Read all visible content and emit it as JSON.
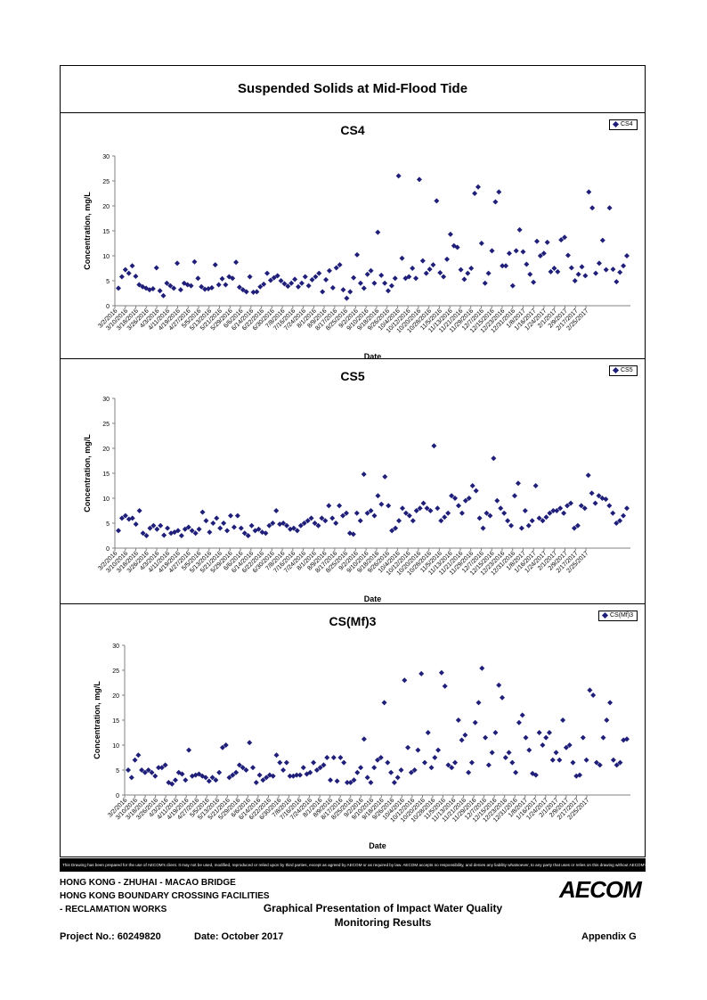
{
  "page": {
    "main_title": "Suspended Solids at Mid-Flood Tide",
    "disclaimer": "This Drawing has been prepared for the use of AECOM's client. It may not be used, modified, reproduced or relied upon by third parties, except as agreed by AECOM or as required by law. AECOM accepts no responsibility, and denies any liability whatsoever, to any party that uses or relies on this drawing without AECOM's express written consent.",
    "footer": {
      "line1": "HONG KONG - ZHUHAI - MACAO BRIDGE",
      "line2": "HONG KONG BOUNDARY CROSSING FACILITIES",
      "line3": "- RECLAMATION WORKS",
      "center1": "Graphical Presentation of Impact Water Quality",
      "center2": "Monitoring Results",
      "project": "Project No.: 60249820",
      "date": "Date: October 2017",
      "appendix": "Appendix G",
      "logo": "AECOM"
    }
  },
  "colors": {
    "marker": "#1f1f7a",
    "axis": "#808080",
    "text": "#000000"
  },
  "chart_data": [
    {
      "type": "scatter",
      "title": "CS4",
      "xlabel": "Date",
      "ylabel": "Concentration, mg/L",
      "ylim": [
        0,
        30
      ],
      "yticks": [
        "0",
        "5",
        "10",
        "15",
        "20",
        "25",
        "30"
      ],
      "xlim": [
        "3/2/2016",
        "3/31/2017"
      ],
      "xtick_labels": [
        "3/2/2016",
        "3/10/2016",
        "3/18/2016",
        "3/26/2016",
        "4/3/2016",
        "4/11/2016",
        "4/19/2016",
        "4/27/2016",
        "5/5/2016",
        "5/13/2016",
        "5/21/2016",
        "5/29/2016",
        "6/6/2016",
        "6/14/2016",
        "6/22/2016",
        "6/30/2016",
        "7/8/2016",
        "7/16/2016",
        "7/24/2016",
        "8/1/2016",
        "8/9/2016",
        "8/17/2016",
        "8/25/2016",
        "9/2/2016",
        "9/10/2016",
        "9/18/2016",
        "9/26/2016",
        "10/4/2016",
        "10/12/2016",
        "10/20/2016",
        "10/28/2016",
        "11/5/2016",
        "11/13/2016",
        "11/21/2016",
        "11/29/2016",
        "12/7/2016",
        "12/15/2016",
        "12/23/2016",
        "12/31/2016",
        "1/8/2017",
        "1/16/2017",
        "1/24/2017",
        "2/1/2017",
        "2/9/2017",
        "2/17/2017",
        "2/25/2017"
      ],
      "legend": "CS4",
      "legend_position": "top-right",
      "grid": false,
      "series": [
        {
          "name": "CS4",
          "values": [
            3.5,
            5.8,
            7.2,
            6.5,
            8.0,
            5.9,
            4.2,
            3.8,
            3.5,
            3.2,
            3.4,
            7.6,
            3.0,
            2.0,
            4.5,
            4.0,
            3.5,
            8.5,
            3.2,
            4.5,
            4.2,
            4.0,
            8.8,
            5.5,
            3.8,
            3.3,
            3.4,
            3.6,
            8.2,
            4.2,
            5.4,
            4.2,
            5.8,
            5.5,
            8.7,
            3.7,
            3.2,
            2.8,
            5.8,
            2.7,
            2.8,
            3.8,
            4.3,
            6.5,
            5.1,
            5.6,
            6.0,
            5.0,
            4.4,
            3.9,
            4.5,
            5.3,
            3.8,
            4.5,
            5.8,
            4.0,
            5.2,
            5.8,
            6.5,
            2.8,
            5.2,
            7.0,
            3.6,
            7.6,
            8.2,
            3.2,
            1.5,
            2.8,
            5.6,
            10.2,
            4.5,
            3.5,
            6.3,
            7.0,
            4.5,
            14.7,
            6.1,
            4.5,
            3.0,
            4.0,
            5.5,
            26.0,
            9.5,
            5.5,
            5.8,
            7.5,
            5.5,
            25.3,
            9.0,
            6.5,
            7.3,
            8.2,
            21.0,
            6.6,
            5.8,
            9.3,
            14.3,
            12.0,
            11.7,
            7.2,
            5.3,
            6.5,
            7.5,
            22.5,
            23.8,
            12.5,
            4.5,
            6.5,
            11.0,
            20.8,
            22.8,
            8.0,
            8.0,
            10.5,
            4.0,
            11.0,
            15.2,
            10.8,
            8.3,
            6.3,
            4.7,
            12.9,
            10.0,
            10.5,
            12.7,
            6.8,
            7.5,
            6.8,
            13.2,
            13.7,
            10.1,
            7.6,
            5.0,
            6.3,
            7.8,
            6.0,
            22.8,
            19.6,
            6.5,
            8.5,
            13.1,
            7.2,
            19.6,
            7.3,
            4.8,
            6.7,
            8.0,
            10.0
          ]
        }
      ]
    },
    {
      "type": "scatter",
      "title": "CS5",
      "xlabel": "Date",
      "ylabel": "Concentration, mg/L",
      "ylim": [
        0,
        30
      ],
      "yticks": [
        "0",
        "5",
        "10",
        "15",
        "20",
        "25",
        "30"
      ],
      "xlim": [
        "3/2/2016",
        "3/31/2017"
      ],
      "xtick_labels": [
        "3/2/2016",
        "3/10/2016",
        "3/18/2016",
        "3/26/2016",
        "4/3/2016",
        "4/11/2016",
        "4/19/2016",
        "4/27/2016",
        "5/5/2016",
        "5/13/2016",
        "5/21/2016",
        "5/29/2016",
        "6/6/2016",
        "6/14/2016",
        "6/22/2016",
        "6/30/2016",
        "7/8/2016",
        "7/16/2016",
        "7/24/2016",
        "8/1/2016",
        "8/9/2016",
        "8/17/2016",
        "8/25/2016",
        "9/2/2016",
        "9/10/2016",
        "9/18/2016",
        "9/26/2016",
        "10/4/2016",
        "10/12/2016",
        "10/20/2016",
        "10/28/2016",
        "11/5/2016",
        "11/13/2016",
        "11/21/2016",
        "11/29/2016",
        "12/7/2016",
        "12/15/2016",
        "12/23/2016",
        "12/31/2016",
        "1/8/2017",
        "1/16/2017",
        "1/24/2017",
        "2/1/2017",
        "2/9/2017",
        "2/17/2017",
        "2/25/2017"
      ],
      "legend": "CS5",
      "legend_position": "top-right",
      "grid": false,
      "series": [
        {
          "name": "CS5",
          "values": [
            3.5,
            6.0,
            6.5,
            5.8,
            6.0,
            4.8,
            7.5,
            3.0,
            2.5,
            4.0,
            4.5,
            3.8,
            4.5,
            2.6,
            4.0,
            3.0,
            3.2,
            3.5,
            2.5,
            3.8,
            4.2,
            3.5,
            3.0,
            3.8,
            7.2,
            5.5,
            3.2,
            5.0,
            6.0,
            4.0,
            5.0,
            3.5,
            6.5,
            4.2,
            6.5,
            4.0,
            3.0,
            2.5,
            4.5,
            3.5,
            3.8,
            3.2,
            3.0,
            4.5,
            5.0,
            7.5,
            4.8,
            5.0,
            4.5,
            3.8,
            4.0,
            3.5,
            4.5,
            5.0,
            5.5,
            6.0,
            5.0,
            4.5,
            6.0,
            5.5,
            8.5,
            6.0,
            5.0,
            8.5,
            6.5,
            7.0,
            3.0,
            2.8,
            7.0,
            5.5,
            14.8,
            7.0,
            7.5,
            6.5,
            10.5,
            8.8,
            14.3,
            8.5,
            3.5,
            4.0,
            5.5,
            8.0,
            7.0,
            6.5,
            5.5,
            7.5,
            8.0,
            9.0,
            8.0,
            7.5,
            20.5,
            8.0,
            5.5,
            6.2,
            7.0,
            10.5,
            10.0,
            8.5,
            7.0,
            9.5,
            10.0,
            12.5,
            11.5,
            6.0,
            4.0,
            7.0,
            6.5,
            18.0,
            9.5,
            8.0,
            7.0,
            5.5,
            4.5,
            10.5,
            13.0,
            4.0,
            7.5,
            4.5,
            5.5,
            12.5,
            6.0,
            5.5,
            6.2,
            7.0,
            7.5,
            7.5,
            8.0,
            7.0,
            8.5,
            9.0,
            4.0,
            4.5,
            8.5,
            8.0,
            14.6,
            11.0,
            9.0,
            10.5,
            10.0,
            9.8,
            8.5,
            7.0,
            5.0,
            5.5,
            6.5,
            8.0
          ]
        }
      ]
    },
    {
      "type": "scatter",
      "title": "CS(Mf)3",
      "xlabel": "Date",
      "ylabel": "Concentration, mg/L",
      "ylim": [
        0,
        30
      ],
      "yticks": [
        "0",
        "5",
        "10",
        "15",
        "20",
        "25",
        "30"
      ],
      "xlim": [
        "3/2/2016",
        "3/31/2017"
      ],
      "xtick_labels": [
        "3/2/2016",
        "3/10/2016",
        "3/18/2016",
        "3/26/2016",
        "4/3/2016",
        "4/11/2016",
        "4/19/2016",
        "4/27/2016",
        "5/5/2016",
        "5/13/2016",
        "5/21/2016",
        "5/29/2016",
        "6/6/2016",
        "6/14/2016",
        "6/22/2016",
        "6/30/2016",
        "7/8/2016",
        "7/16/2016",
        "7/24/2016",
        "8/1/2016",
        "8/9/2016",
        "8/17/2016",
        "8/25/2016",
        "9/2/2016",
        "9/10/2016",
        "9/18/2016",
        "9/26/2016",
        "10/4/2016",
        "10/12/2016",
        "10/20/2016",
        "10/28/2016",
        "11/5/2016",
        "11/13/2016",
        "11/21/2016",
        "11/29/2016",
        "12/7/2016",
        "12/15/2016",
        "12/23/2016",
        "12/31/2016",
        "1/8/2017",
        "1/16/2017",
        "1/24/2017",
        "2/1/2017",
        "2/9/2017",
        "2/17/2017",
        "2/25/2017"
      ],
      "legend": "CS(Mf)3",
      "legend_position": "top-right",
      "grid": false,
      "series": [
        {
          "name": "CS(Mf)3",
          "values": [
            5.0,
            3.5,
            7.0,
            8.0,
            5.0,
            4.5,
            5.0,
            4.5,
            3.8,
            5.5,
            5.5,
            6.0,
            2.5,
            2.2,
            3.0,
            4.5,
            4.2,
            3.0,
            9.0,
            3.8,
            4.0,
            4.2,
            3.8,
            3.5,
            2.8,
            3.5,
            3.0,
            4.5,
            9.5,
            10.0,
            3.5,
            4.0,
            4.5,
            6.0,
            5.5,
            5.0,
            10.5,
            5.5,
            2.5,
            4.0,
            3.0,
            3.5,
            4.0,
            3.8,
            8.0,
            6.5,
            5.0,
            6.5,
            3.8,
            3.8,
            4.0,
            4.0,
            5.5,
            4.2,
            4.5,
            6.5,
            5.0,
            5.5,
            6.0,
            7.5,
            3.0,
            7.5,
            2.8,
            7.5,
            6.5,
            2.5,
            2.5,
            3.0,
            4.5,
            5.5,
            11.2,
            3.5,
            2.5,
            5.5,
            7.0,
            7.5,
            18.5,
            6.5,
            4.5,
            2.5,
            3.5,
            5.0,
            23.0,
            9.5,
            4.5,
            5.0,
            9.0,
            24.3,
            6.5,
            12.5,
            5.5,
            7.5,
            9.0,
            24.5,
            21.8,
            6.0,
            5.5,
            6.5,
            15.0,
            11.0,
            12.0,
            4.5,
            6.5,
            14.5,
            18.5,
            25.4,
            11.5,
            6.0,
            8.5,
            12.5,
            22.0,
            19.5,
            7.5,
            8.5,
            6.5,
            4.5,
            14.5,
            16.0,
            11.5,
            9.0,
            4.3,
            4.0,
            12.5,
            10.0,
            11.5,
            12.5,
            7.0,
            8.5,
            7.0,
            15.0,
            9.5,
            10.0,
            6.5,
            3.8,
            4.0,
            11.5,
            7.0,
            21.0,
            20.0,
            6.5,
            6.0,
            11.5,
            15.0,
            18.5,
            7.0,
            6.0,
            6.5,
            11.0,
            11.2
          ]
        }
      ]
    }
  ]
}
